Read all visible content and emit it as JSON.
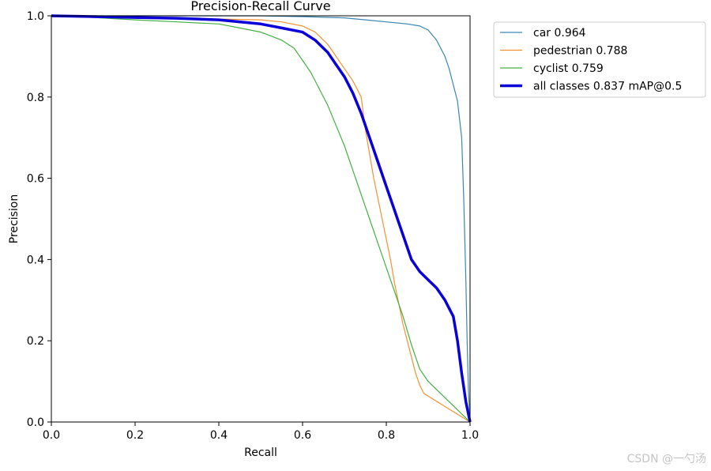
{
  "chart_data": {
    "type": "line",
    "title": "Precision-Recall Curve",
    "xlabel": "Recall",
    "ylabel": "Precision",
    "xlim": [
      0,
      1
    ],
    "ylim": [
      0,
      1
    ],
    "xticks": [
      "0.0",
      "0.2",
      "0.4",
      "0.6",
      "0.8",
      "1.0"
    ],
    "yticks": [
      "0.0",
      "0.2",
      "0.4",
      "0.6",
      "0.8",
      "1.0"
    ],
    "grid": false,
    "legend_position": "outside-top-right",
    "series": [
      {
        "name": "car 0.964",
        "color": "#3a87b3",
        "x": [
          0.0,
          0.1,
          0.2,
          0.3,
          0.4,
          0.5,
          0.6,
          0.7,
          0.75,
          0.8,
          0.85,
          0.88,
          0.9,
          0.92,
          0.94,
          0.95,
          0.96,
          0.97,
          0.98,
          0.985,
          0.99,
          0.993,
          0.996,
          1.0
        ],
        "y": [
          1.0,
          1.0,
          1.0,
          1.0,
          1.0,
          1.0,
          0.998,
          0.995,
          0.99,
          0.985,
          0.98,
          0.975,
          0.965,
          0.94,
          0.9,
          0.87,
          0.83,
          0.79,
          0.7,
          0.55,
          0.35,
          0.2,
          0.08,
          0.0
        ]
      },
      {
        "name": "pedestrian 0.788",
        "color": "#f39232",
        "x": [
          0.0,
          0.1,
          0.2,
          0.3,
          0.4,
          0.5,
          0.55,
          0.6,
          0.63,
          0.66,
          0.68,
          0.7,
          0.72,
          0.74,
          0.75,
          0.76,
          0.77,
          0.78,
          0.79,
          0.8,
          0.81,
          0.82,
          0.83,
          0.84,
          0.85,
          0.86,
          0.87,
          0.88,
          0.89,
          1.0
        ],
        "y": [
          1.0,
          0.998,
          0.996,
          0.994,
          0.992,
          0.99,
          0.985,
          0.975,
          0.96,
          0.93,
          0.9,
          0.87,
          0.84,
          0.8,
          0.72,
          0.66,
          0.6,
          0.55,
          0.5,
          0.45,
          0.4,
          0.34,
          0.29,
          0.24,
          0.2,
          0.16,
          0.12,
          0.09,
          0.07,
          0.0
        ]
      },
      {
        "name": "cyclist 0.759",
        "color": "#44b044",
        "x": [
          0.0,
          0.1,
          0.2,
          0.3,
          0.4,
          0.45,
          0.5,
          0.55,
          0.58,
          0.6,
          0.62,
          0.64,
          0.66,
          0.68,
          0.7,
          0.72,
          0.74,
          0.76,
          0.78,
          0.8,
          0.82,
          0.84,
          0.86,
          0.88,
          0.9,
          0.95,
          1.0
        ],
        "y": [
          1.0,
          0.996,
          0.99,
          0.985,
          0.98,
          0.97,
          0.96,
          0.94,
          0.92,
          0.89,
          0.86,
          0.82,
          0.78,
          0.73,
          0.68,
          0.62,
          0.56,
          0.5,
          0.44,
          0.38,
          0.32,
          0.26,
          0.19,
          0.13,
          0.1,
          0.05,
          0.0
        ]
      },
      {
        "name": "all classes 0.837 mAP@0.5",
        "color": "#0a00d8",
        "thick": true,
        "x": [
          0.0,
          0.1,
          0.2,
          0.3,
          0.4,
          0.5,
          0.55,
          0.6,
          0.63,
          0.66,
          0.68,
          0.7,
          0.72,
          0.74,
          0.76,
          0.78,
          0.8,
          0.82,
          0.84,
          0.86,
          0.88,
          0.9,
          0.92,
          0.94,
          0.96,
          0.97,
          0.98,
          0.99,
          1.0
        ],
        "y": [
          1.0,
          0.998,
          0.996,
          0.994,
          0.99,
          0.98,
          0.97,
          0.96,
          0.94,
          0.91,
          0.88,
          0.85,
          0.81,
          0.76,
          0.7,
          0.64,
          0.58,
          0.52,
          0.46,
          0.4,
          0.37,
          0.35,
          0.33,
          0.3,
          0.26,
          0.2,
          0.12,
          0.05,
          0.0
        ]
      }
    ]
  },
  "watermark": "CSDN @一勺汤"
}
